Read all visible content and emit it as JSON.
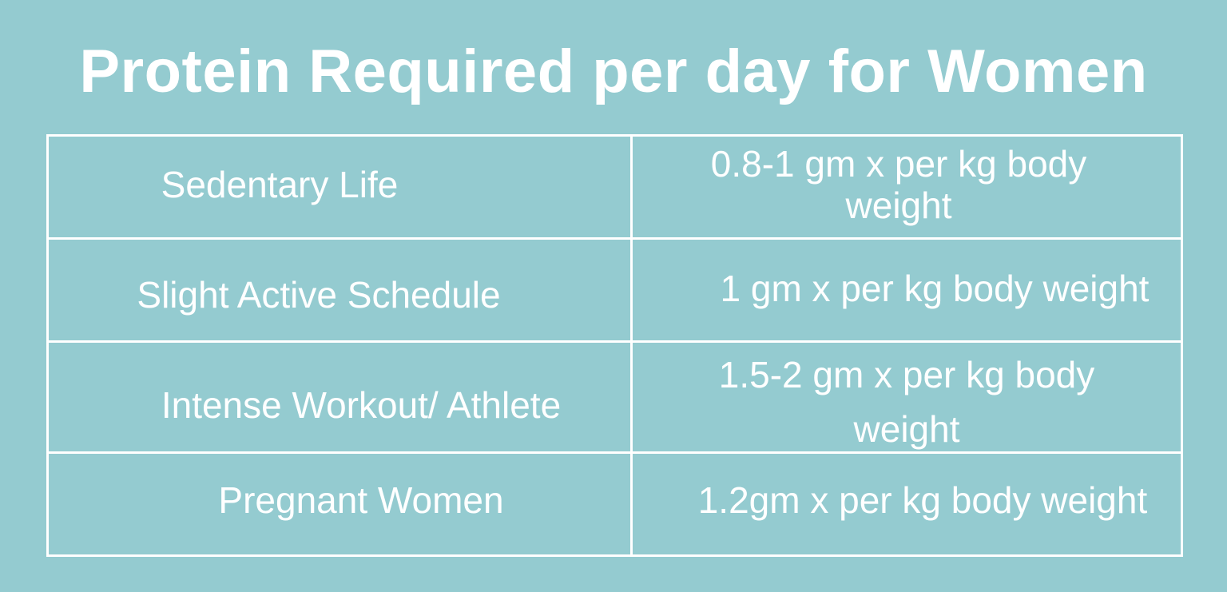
{
  "title": "Protein Required per day for Women",
  "table": {
    "rows": [
      {
        "category": "Sedentary Life",
        "requirement": "0.8-1 gm x per kg body weight"
      },
      {
        "category": "Slight Active Schedule",
        "requirement": "1 gm x per kg body weight"
      },
      {
        "category": "Intense Workout/ Athlete",
        "requirement": "1.5-2 gm x per kg body weight"
      },
      {
        "category": "Pregnant Women",
        "requirement": "1.2gm x per kg body weight"
      }
    ]
  },
  "colors": {
    "background": "#94CBD0",
    "text": "#FFFFFF",
    "border": "#FFFFFF"
  }
}
